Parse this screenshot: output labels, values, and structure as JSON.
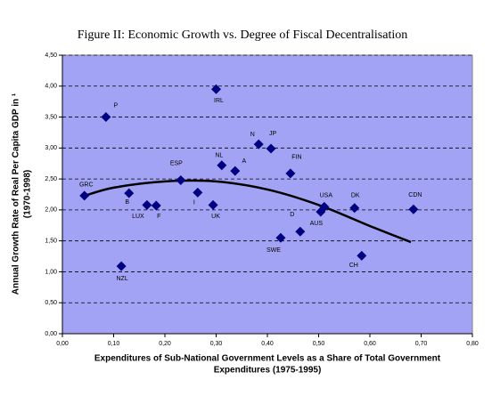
{
  "chart_data": {
    "type": "scatter",
    "title": "Figure II: Economic Growth vs. Degree of Fiscal Decentralisation",
    "x_label": [
      "Expenditures of Sub-National Government Levels as a Share of Total Government",
      "Expenditures (1975-1995)"
    ],
    "y_label": [
      "Annual Growth Rate of Real Per Capita GDP in ¹",
      "(1970-1998)"
    ],
    "labels": [
      "GRC",
      "P",
      "B",
      "LUX",
      "F",
      "NZL",
      "ESP",
      "I",
      "UK",
      "IRL",
      "NL",
      "A",
      "N",
      "JP",
      "FIN",
      "SWE",
      "D",
      "AUS",
      "USA",
      "DK",
      "CH",
      "CDN"
    ],
    "x": [
      0.043,
      0.085,
      0.13,
      0.165,
      0.183,
      0.115,
      0.231,
      0.264,
      0.294,
      0.3,
      0.311,
      0.337,
      0.383,
      0.407,
      0.445,
      0.426,
      0.464,
      0.504,
      0.511,
      0.57,
      0.584,
      0.685
    ],
    "values": [
      2.23,
      3.5,
      2.27,
      2.08,
      2.07,
      1.09,
      2.48,
      2.28,
      2.08,
      3.95,
      2.72,
      2.63,
      3.06,
      2.99,
      2.59,
      1.55,
      1.65,
      1.97,
      2.05,
      2.03,
      1.26,
      2.01
    ],
    "color": "#000080",
    "trend": {
      "x": [
        0.04,
        0.1,
        0.2,
        0.3,
        0.4,
        0.5,
        0.6,
        0.68
      ],
      "values": [
        2.22,
        2.36,
        2.46,
        2.46,
        2.33,
        2.08,
        1.74,
        1.48
      ],
      "color": "#000000"
    },
    "xlim": [
      0,
      0.8
    ],
    "xticks": [
      {
        "value": 0,
        "label": "0,00"
      },
      {
        "value": 0.1,
        "label": "0,10"
      },
      {
        "value": 0.2,
        "label": "0,20"
      },
      {
        "value": 0.3,
        "label": "0,30"
      },
      {
        "value": 0.4,
        "label": "0,40"
      },
      {
        "value": 0.5,
        "label": "0,50"
      },
      {
        "value": 0.6,
        "label": "0,60"
      },
      {
        "value": 0.7,
        "label": "0,70"
      },
      {
        "value": 0.8,
        "label": "0,80"
      }
    ],
    "ylim": [
      0,
      4.5
    ],
    "yticks": [
      {
        "value": 0,
        "label": "0,00"
      },
      {
        "value": 0.5,
        "label": "0,50"
      },
      {
        "value": 1,
        "label": "1,00"
      },
      {
        "value": 1.5,
        "label": "1,50"
      },
      {
        "value": 2,
        "label": "2,00"
      },
      {
        "value": 2.5,
        "label": "2,50"
      },
      {
        "value": 3,
        "label": "3,00"
      },
      {
        "value": 3.5,
        "label": "3,50"
      },
      {
        "value": 4,
        "label": "4,00"
      },
      {
        "value": 4.5,
        "label": "4,50"
      }
    ],
    "grid": true
  }
}
